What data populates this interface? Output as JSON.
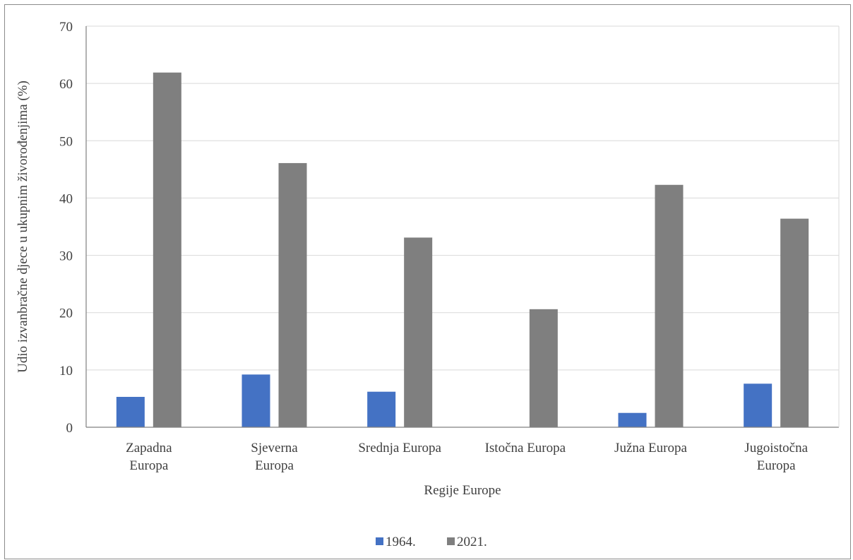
{
  "chart_data": {
    "type": "bar",
    "title": "",
    "xlabel": "Regije Europe",
    "ylabel": "Udio izvanbračne djece u ukupnim živorođenjima (%)",
    "categories": [
      [
        "Zapadna",
        "Europa"
      ],
      [
        "Sjeverna",
        "Europa"
      ],
      [
        "Srednja Europa"
      ],
      [
        "Istočna Europa"
      ],
      [
        "Južna Europa"
      ],
      [
        "Jugoistočna",
        "Europa"
      ]
    ],
    "series": [
      {
        "name": "1964.",
        "color": "#4472c4",
        "values": [
          5.3,
          9.2,
          6.2,
          0,
          2.5,
          7.6
        ]
      },
      {
        "name": "2021.",
        "color": "#7f7f7f",
        "values": [
          61.9,
          46.1,
          33.1,
          20.6,
          42.3,
          36.4
        ]
      }
    ],
    "ylim": [
      0,
      70
    ],
    "yticks": [
      "0",
      "10",
      "20",
      "30",
      "40",
      "50",
      "60",
      "70"
    ],
    "grid": true,
    "legend": "bottom"
  }
}
